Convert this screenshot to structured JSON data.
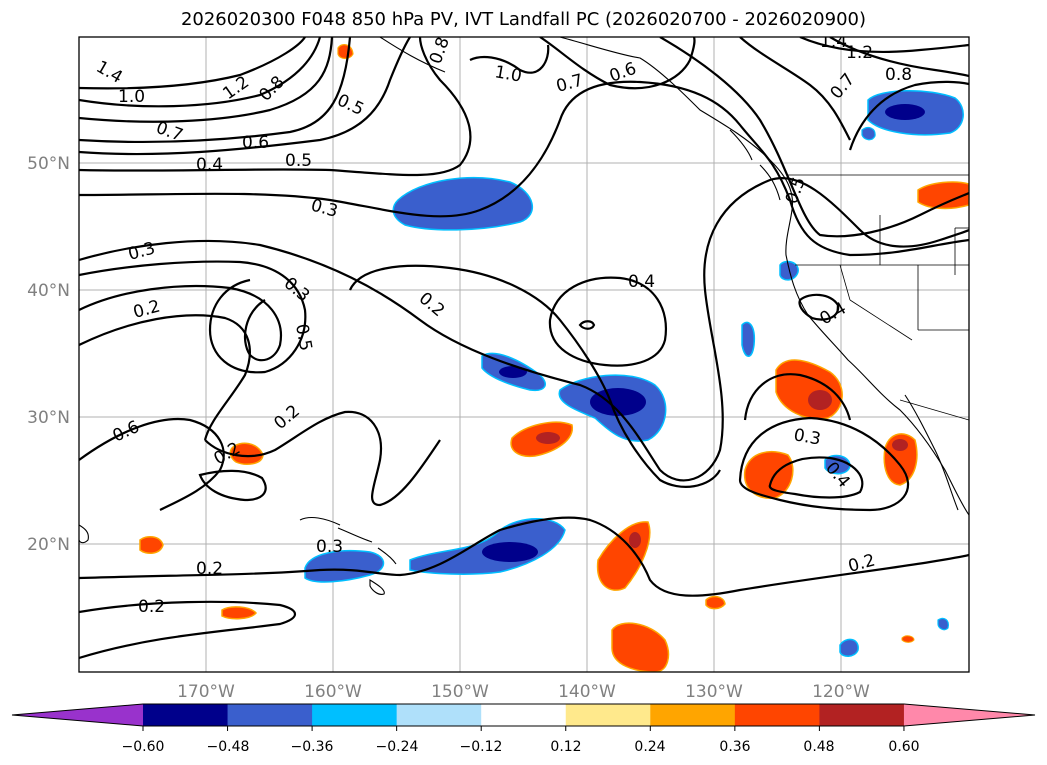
{
  "title": "2026020300 F048 850 hPa PV, IVT Landfall PC (2026020700 - 2026020900)",
  "map": {
    "lon_ticks": [
      "170°W",
      "160°W",
      "150°W",
      "140°W",
      "130°W",
      "120°W"
    ],
    "lat_ticks": [
      "50°N",
      "40°N",
      "30°N",
      "20°N"
    ],
    "grid": true,
    "projection": "PlateCarree"
  },
  "contour_labels": [
    "1.4",
    "1.0",
    "1.2",
    "0.8",
    "0.7",
    "0.6",
    "0.5",
    "0.4",
    "0.3",
    "0.3",
    "0.2",
    "0.5",
    "0.2",
    "0.3",
    "0.4",
    "0.5",
    "0.6",
    "0.2",
    "0.2",
    "0.2",
    "0.2",
    "0.3",
    "0.4",
    "0.5",
    "0.3",
    "0.4",
    "0.2",
    "0.6",
    "0.7",
    "1.0",
    "0.8",
    "0.7",
    "1.2",
    "1.4",
    "0.8"
  ],
  "colorbar": {
    "levels": [
      "−0.60",
      "−0.48",
      "−0.36",
      "−0.24",
      "−0.12",
      "0.12",
      "0.24",
      "0.36",
      "0.48",
      "0.60"
    ],
    "colors": [
      "#9932cc",
      "#00008b",
      "#3a5fcd",
      "#00bfff",
      "#afe0fa",
      "#ffffff",
      "#ffe98c",
      "#ffa500",
      "#ff4500",
      "#b22222",
      "#ff88aa"
    ],
    "extend": "both"
  },
  "colors": {
    "contour": "#000000",
    "grid": "#b0b0b0",
    "tick_text": "#808080"
  }
}
